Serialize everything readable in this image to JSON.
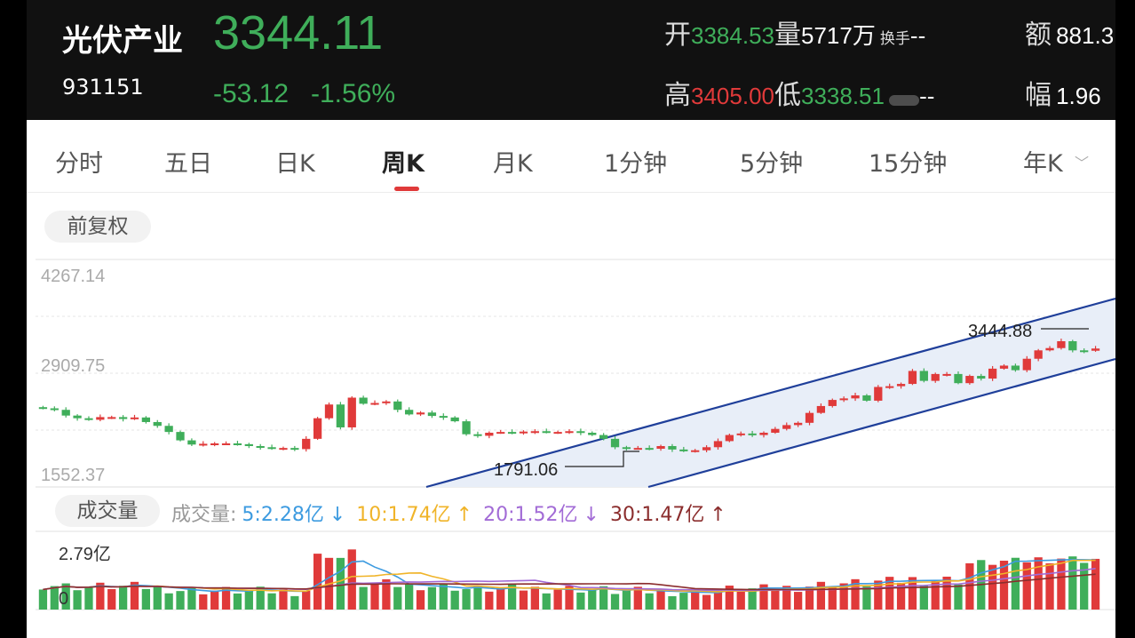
{
  "header": {
    "name": "光伏产业",
    "code": "931151",
    "price": "3344.11",
    "change": "-53.12",
    "change_pct": "-1.56%",
    "open_label": "开",
    "open_value": "3384.53",
    "volume_label": "量",
    "volume_value": "5717万",
    "turnover_label": "换手",
    "turnover_value": "--",
    "amount_label": "额",
    "amount_value": "881.3",
    "high_label": "高",
    "high_value": "3405.00",
    "low_label": "低",
    "low_value": "3338.51",
    "low_extra_value": "--",
    "amplitude_label": "幅",
    "amplitude_value": "1.96"
  },
  "tabs": [
    {
      "label": "分时"
    },
    {
      "label": "五日"
    },
    {
      "label": "日K"
    },
    {
      "label": "周K",
      "active": true
    },
    {
      "label": "月K"
    },
    {
      "label": "1分钟"
    },
    {
      "label": "5分钟"
    },
    {
      "label": "15分钟"
    },
    {
      "label": "年K"
    }
  ],
  "adjust_button": "前复权",
  "price_chart": {
    "y_labels": [
      "4267.14",
      "2909.75",
      "1552.37"
    ],
    "annotation_low": "1791.06",
    "annotation_high": "3444.88"
  },
  "volume_chart": {
    "button": "成交量",
    "legend_title": "成交量:",
    "ma": [
      {
        "label": "5:2.28亿",
        "arrow": "↓",
        "color": "#3d9be0"
      },
      {
        "label": "10:1.74亿",
        "arrow": "↑",
        "color": "#f0b429"
      },
      {
        "label": "20:1.52亿",
        "arrow": "↓",
        "color": "#a26bd6"
      },
      {
        "label": "30:1.47亿",
        "arrow": "↑",
        "color": "#8b2d2d"
      }
    ],
    "y_top": "2.79亿",
    "y_bottom": "0"
  },
  "colors": {
    "up": "#e03a3a",
    "down": "#3fae5a",
    "channel": "#1f3f9a",
    "channel_fill": "#e8eef8"
  },
  "chart_data": {
    "type": "candlestick",
    "title": "",
    "ylim": [
      1552.37,
      4267.14
    ],
    "y_ticks": [
      4267.14,
      2909.75,
      1552.37
    ],
    "annotations": [
      {
        "label": "1791.06",
        "value": 1791.06
      },
      {
        "label": "3444.88",
        "value": 3444.88
      }
    ],
    "closes_approx": [
      2560,
      2540,
      2465,
      2430,
      2410,
      2445,
      2445,
      2420,
      2440,
      2380,
      2330,
      2250,
      2140,
      2085,
      2095,
      2100,
      2100,
      2090,
      2065,
      2050,
      2030,
      2040,
      2025,
      2160,
      2430,
      2610,
      2310,
      2700,
      2620,
      2630,
      2650,
      2540,
      2480,
      2505,
      2460,
      2440,
      2390,
      2220,
      2200,
      2240,
      2250,
      2240,
      2255,
      2260,
      2245,
      2250,
      2260,
      2240,
      2210,
      2160,
      2050,
      2040,
      2040,
      2030,
      2065,
      2020,
      2000,
      2010,
      2050,
      2130,
      2210,
      2230,
      2210,
      2240,
      2290,
      2340,
      2370,
      2500,
      2590,
      2670,
      2690,
      2730,
      2660,
      2840,
      2850,
      2880,
      3050,
      2920,
      3010,
      3010,
      2890,
      2985,
      2950,
      3080,
      3120,
      3060,
      3210,
      3320,
      3350,
      3440,
      3320,
      3315,
      3344
    ],
    "volume": {
      "unit": "亿",
      "ylim": [
        0,
        2.79
      ],
      "ma5": 2.28,
      "ma10": 1.74,
      "ma20": 1.52,
      "ma30": 1.47
    }
  }
}
